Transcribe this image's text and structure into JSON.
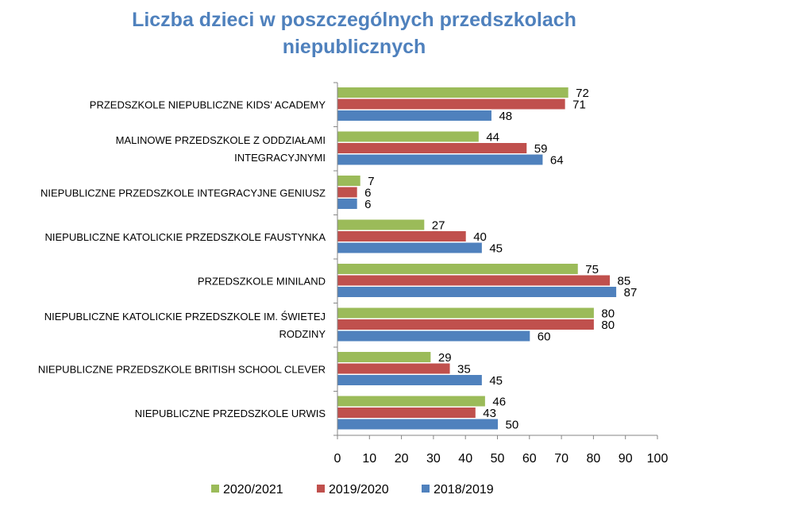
{
  "chart_data": {
    "type": "bar",
    "orientation": "horizontal",
    "title": "Liczba dzieci w poszczególnych przedszkolach niepublicznych",
    "categories": [
      "PRZEDSZKOLE NIEPUBLICZNE KIDS' ACADEMY",
      "MALINOWE PRZEDSZKOLE Z ODDZIAŁAMI INTEGRACYJNYMI",
      "NIEPUBLICZNE PRZEDSZKOLE INTEGRACYJNE GENIUSZ",
      "NIEPUBLICZNE KATOLICKIE PRZEDSZKOLE FAUSTYNKA",
      "PRZEDSZKOLE MINILAND",
      "NIEPUBLICZNE KATOLICKIE PRZEDSZKOLE IM. ŚWIETEJ RODZINY",
      "NIEPUBLICZNE PRZEDSZKOLE BRITISH SCHOOL CLEVER",
      "NIEPUBLICZNE PRZEDSZKOLE URWIS"
    ],
    "category_lines": [
      [
        "PRZEDSZKOLE NIEPUBLICZNE KIDS' ACADEMY"
      ],
      [
        "MALINOWE PRZEDSZKOLE Z ODDZIAŁAMI",
        "INTEGRACYJNYMI"
      ],
      [
        "NIEPUBLICZNE PRZEDSZKOLE INTEGRACYJNE GENIUSZ"
      ],
      [
        "NIEPUBLICZNE KATOLICKIE PRZEDSZKOLE FAUSTYNKA"
      ],
      [
        "PRZEDSZKOLE MINILAND"
      ],
      [
        "NIEPUBLICZNE KATOLICKIE PRZEDSZKOLE IM. ŚWIETEJ",
        "RODZINY"
      ],
      [
        "NIEPUBLICZNE PRZEDSZKOLE BRITISH SCHOOL CLEVER"
      ],
      [
        "NIEPUBLICZNE PRZEDSZKOLE URWIS"
      ]
    ],
    "series": [
      {
        "name": "2020/2021",
        "color": "#9bbb59",
        "values": [
          72,
          44,
          7,
          27,
          75,
          80,
          29,
          46
        ]
      },
      {
        "name": "2019/2020",
        "color": "#c0504d",
        "values": [
          71,
          59,
          6,
          40,
          85,
          80,
          35,
          43
        ]
      },
      {
        "name": "2018/2019",
        "color": "#4f81bd",
        "values": [
          48,
          64,
          6,
          45,
          87,
          60,
          45,
          50
        ]
      }
    ],
    "xlim": [
      0,
      100
    ],
    "xticks": [
      0,
      10,
      20,
      30,
      40,
      50,
      60,
      70,
      80,
      90,
      100
    ],
    "xlabel": "",
    "ylabel": "",
    "grid": false,
    "data_labels": true,
    "legend_position": "bottom"
  }
}
